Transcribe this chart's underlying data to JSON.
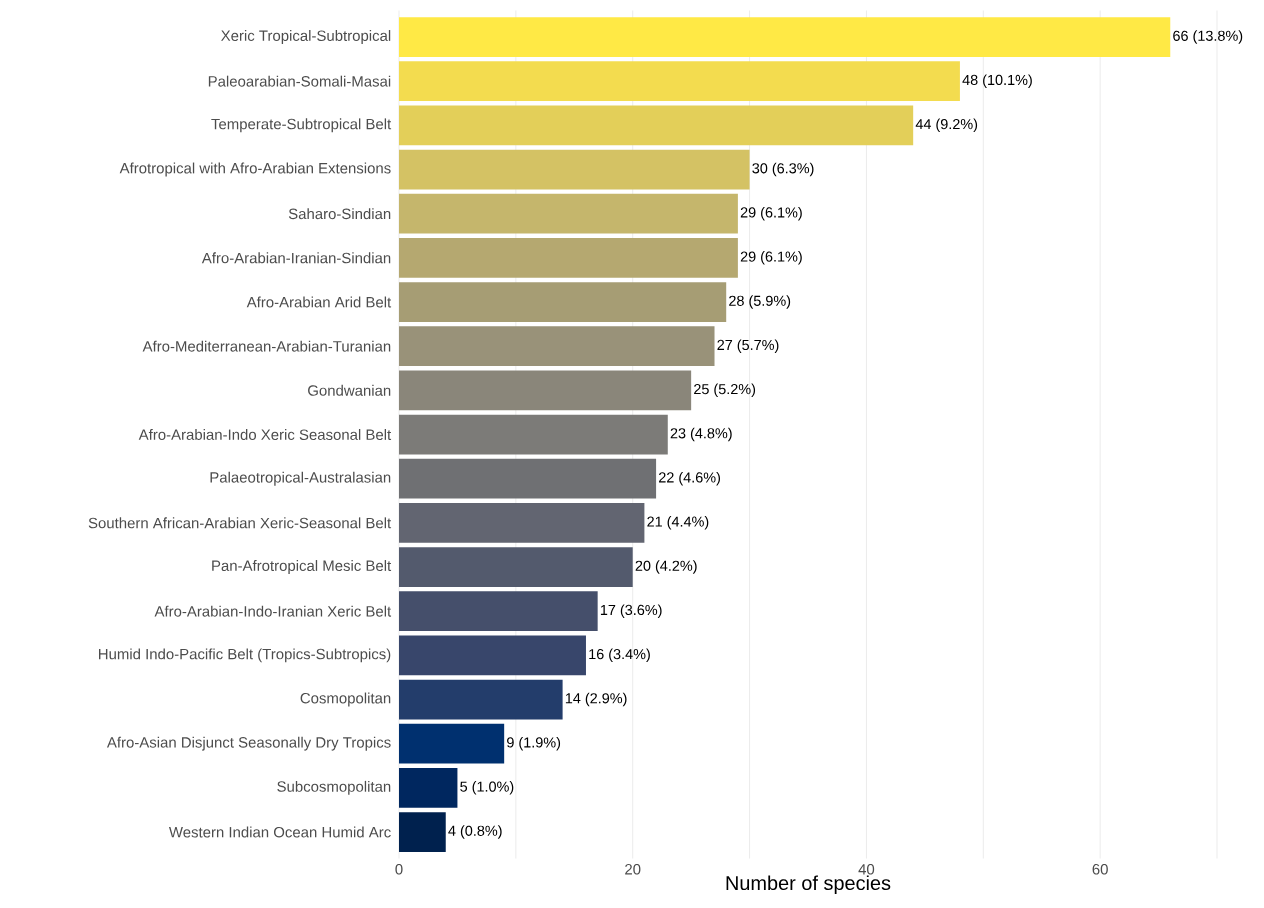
{
  "chart_data": {
    "type": "bar",
    "orientation": "horizontal",
    "xlabel": "Number of species",
    "categories": [
      "Xeric Tropical-Subtropical",
      "Paleoarabian-Somali-Masai",
      "Temperate-Subtropical Belt",
      "Afrotropical with Afro-Arabian Extensions",
      "Saharo-Sindian",
      "Afro-Arabian-Iranian-Sindian",
      "Afro-Arabian Arid Belt",
      "Afro-Mediterranean-Arabian-Turanian",
      "Gondwanian",
      "Afro-Arabian-Indo Xeric Seasonal Belt",
      "Palaeotropical-Australasian",
      "Southern African-Arabian Xeric-Seasonal Belt",
      "Pan-Afrotropical Mesic Belt",
      "Afro-Arabian-Indo-Iranian Xeric Belt",
      "Humid Indo-Pacific Belt (Tropics-Subtropics)",
      "Cosmopolitan",
      "Afro-Asian Disjunct Seasonally Dry Tropics",
      "Subcosmopolitan",
      "Western Indian Ocean Humid Arc"
    ],
    "values": [
      66,
      48,
      44,
      30,
      29,
      29,
      28,
      27,
      25,
      23,
      22,
      21,
      20,
      17,
      16,
      14,
      9,
      5,
      4
    ],
    "colors": [
      "#ffe945",
      "#f3dc4f",
      "#e3cf59",
      "#d4c264",
      "#c5b66c",
      "#b5a870",
      "#a69d74",
      "#999279",
      "#8a867a",
      "#7c7b78",
      "#6f7073",
      "#626571",
      "#535a6d",
      "#454f6b",
      "#38466b",
      "#233d6b",
      "#00306f",
      "#00275f",
      "#00214e"
    ],
    "value_labels": [
      "66 (13.8%)",
      "48 (10.1%)",
      "44 (9.2%)",
      "30 (6.3%)",
      "29 (6.1%)",
      "29 (6.1%)",
      "28 (5.9%)",
      "27 (5.7%)",
      "25 (5.2%)",
      "23 (4.8%)",
      "22 (4.6%)",
      "21 (4.4%)",
      "20 (4.2%)",
      "17 (3.6%)",
      "16 (3.4%)",
      "14 (2.9%)",
      "9 (1.9%)",
      "5 (1.0%)",
      "4 (0.8%)"
    ],
    "xlim": [
      0,
      70
    ],
    "xticks": [
      0,
      {
        "value": 10,
        "label": null
      },
      20,
      {
        "value": 30,
        "label": null
      },
      40,
      {
        "value": 50,
        "label": null
      },
      60,
      {
        "value": 70,
        "label": null
      }
    ],
    "grid": "x"
  }
}
